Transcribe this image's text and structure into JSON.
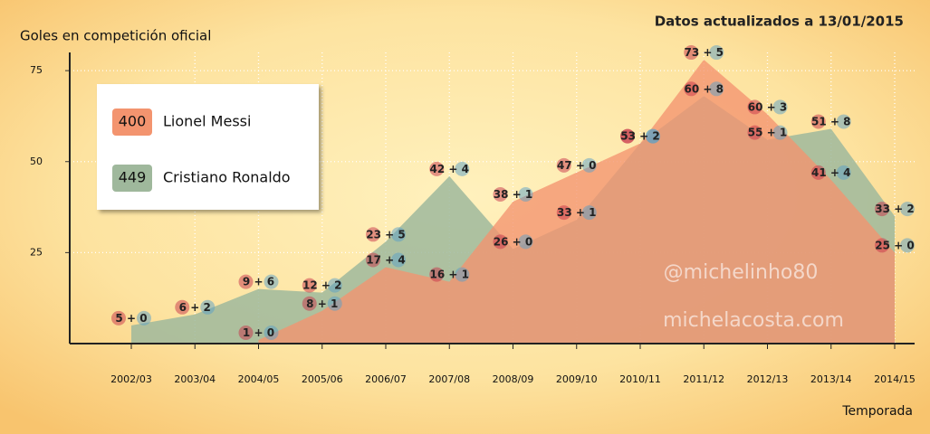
{
  "chart_data": {
    "type": "area",
    "title": "Goles en competición oficial",
    "subtitle": "Datos actualizados a 13/01/2015",
    "x_label": "Temporada",
    "annotations": [
      "@michelinho80",
      "michelacosta.com"
    ],
    "categories": [
      "2002/03",
      "2003/04",
      "2004/05",
      "2005/06",
      "2006/07",
      "2007/08",
      "2008/09",
      "2009/10",
      "2010/11",
      "2011/12",
      "2012/13",
      "2013/14",
      "2014/15"
    ],
    "series": [
      {
        "name": "Cristiano Ronaldo",
        "total": 449,
        "color": "#9fb89c",
        "club": [
          5,
          6,
          9,
          12,
          23,
          42,
          26,
          33,
          53,
          60,
          55,
          51,
          33
        ],
        "national": [
          0,
          2,
          6,
          2,
          5,
          4,
          0,
          1,
          2,
          8,
          1,
          8,
          2
        ]
      },
      {
        "name": "Lionel Messi",
        "total": 400,
        "color": "#f3946f",
        "club": [
          null,
          null,
          1,
          8,
          17,
          16,
          38,
          47,
          53,
          73,
          60,
          41,
          25
        ],
        "national": [
          null,
          null,
          0,
          1,
          4,
          1,
          1,
          0,
          2,
          5,
          3,
          4,
          0
        ]
      }
    ],
    "ylim": [
      0,
      80
    ],
    "yticks": [
      25,
      50,
      75
    ],
    "grid": true
  }
}
